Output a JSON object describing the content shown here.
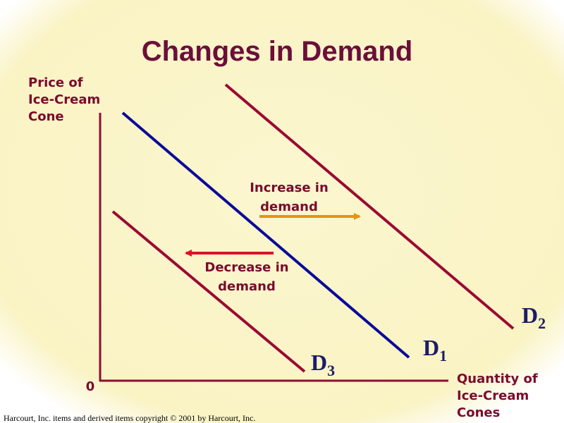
{
  "title": "Changes in Demand",
  "y_axis_label": [
    "Price of",
    "Ice-Cream",
    "Cone"
  ],
  "x_axis_label": [
    "Quantity of",
    "Ice-Cream",
    "Cones"
  ],
  "origin_label": "0",
  "curves": [
    {
      "name": "D",
      "subscript": "1"
    },
    {
      "name": "D",
      "subscript": "2"
    },
    {
      "name": "D",
      "subscript": "3"
    }
  ],
  "annotations": [
    {
      "lines": [
        "Increase in",
        "demand"
      ]
    },
    {
      "lines": [
        "Decrease in",
        "demand"
      ]
    }
  ],
  "footer": "Harcourt, Inc. items and derived items copyright © 2001 by Harcourt, Inc."
}
